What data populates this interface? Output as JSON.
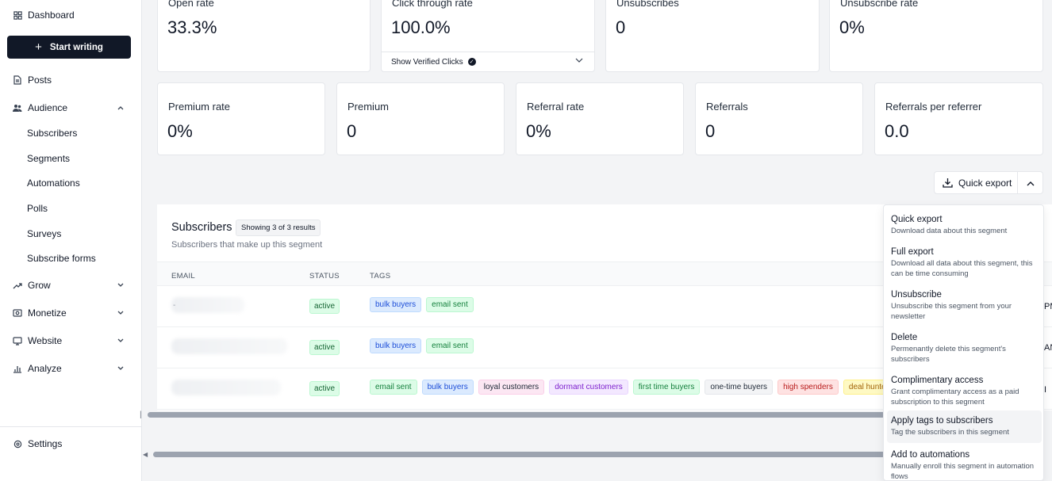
{
  "sidebar": {
    "dashboard": "Dashboard",
    "start_writing": "Start writing",
    "posts": "Posts",
    "audience": "Audience",
    "audience_items": [
      "Subscribers",
      "Segments",
      "Automations",
      "Polls",
      "Surveys",
      "Subscribe forms"
    ],
    "grow": "Grow",
    "monetize": "Monetize",
    "website": "Website",
    "analyze": "Analyze",
    "settings": "Settings"
  },
  "stats_top": [
    {
      "label": "Open rate",
      "value": "33.3%"
    },
    {
      "label": "Click through rate",
      "value": "100.0%",
      "verified": "Show Verified Clicks"
    },
    {
      "label": "Unsubscribes",
      "value": "0"
    },
    {
      "label": "Unsubscribe rate",
      "value": "0%"
    }
  ],
  "stats_bottom": [
    {
      "label": "Premium rate",
      "value": "0%"
    },
    {
      "label": "Premium",
      "value": "0"
    },
    {
      "label": "Referral rate",
      "value": "0%"
    },
    {
      "label": "Referrals",
      "value": "0"
    },
    {
      "label": "Referrals per referrer",
      "value": "0.0"
    }
  ],
  "export": {
    "label": "Quick export"
  },
  "subscribers": {
    "title": "Subscribers",
    "result_count": "Showing 3 of 3 results",
    "subtitle": "Subscribers that make up this segment",
    "columns": [
      "EMAIL",
      "STATUS",
      "TAGS"
    ],
    "rows": [
      {
        "email": "-",
        "status": "active",
        "tags": [
          "bulk buyers",
          "email sent"
        ],
        "edge": "PM"
      },
      {
        "email": "",
        "status": "active",
        "tags": [
          "bulk buyers",
          "email sent"
        ],
        "edge": "AN"
      },
      {
        "email": "",
        "status": "active",
        "tags": [
          "email sent",
          "bulk buyers",
          "loyal customers",
          "dormant customers",
          "first time buyers",
          "one-time buyers",
          "high spenders",
          "deal hunters"
        ],
        "edge": "I"
      }
    ]
  },
  "tag_colors": {
    "bulk buyers": {
      "bg": "#dbeafe",
      "border": "#bfdbfe",
      "fg": "#1d4ed8"
    },
    "email sent": {
      "bg": "#dcfce7",
      "border": "#bbf7d0",
      "fg": "#15803d"
    },
    "loyal customers": {
      "bg": "#fce7f3",
      "border": "#fbcfe8",
      "fg": "#1f2937"
    },
    "dormant customers": {
      "bg": "#f3e8ff",
      "border": "#e9d5ff",
      "fg": "#7e22ce"
    },
    "first time buyers": {
      "bg": "#dcfce7",
      "border": "#bbf7d0",
      "fg": "#15803d"
    },
    "one-time buyers": {
      "bg": "#f3f4f6",
      "border": "#e5e7eb",
      "fg": "#1f2937"
    },
    "high spenders": {
      "bg": "#fee2e2",
      "border": "#fecaca",
      "fg": "#b91c1c"
    },
    "deal hunters": {
      "bg": "#fef9c3",
      "border": "#fef08a",
      "fg": "#a16207"
    }
  },
  "menu": [
    {
      "label": "Quick export",
      "desc": "Download data about this segment"
    },
    {
      "label": "Full export",
      "desc": "Download all data about this segment, this can be time consuming"
    },
    {
      "label": "Unsubscribe",
      "desc": "Unsubscribe this segment from your newsletter"
    },
    {
      "label": "Delete",
      "desc": "Permenantly delete this segment's subscribers"
    },
    {
      "label": "Complimentary access",
      "desc": "Grant complimentary access as a paid subscription to this segment"
    },
    {
      "label": "Apply tags to subscribers",
      "desc": "Tag the subscribers in this segment"
    },
    {
      "label": "Add to automations",
      "desc": "Manually enroll this segment in automation flows"
    }
  ]
}
